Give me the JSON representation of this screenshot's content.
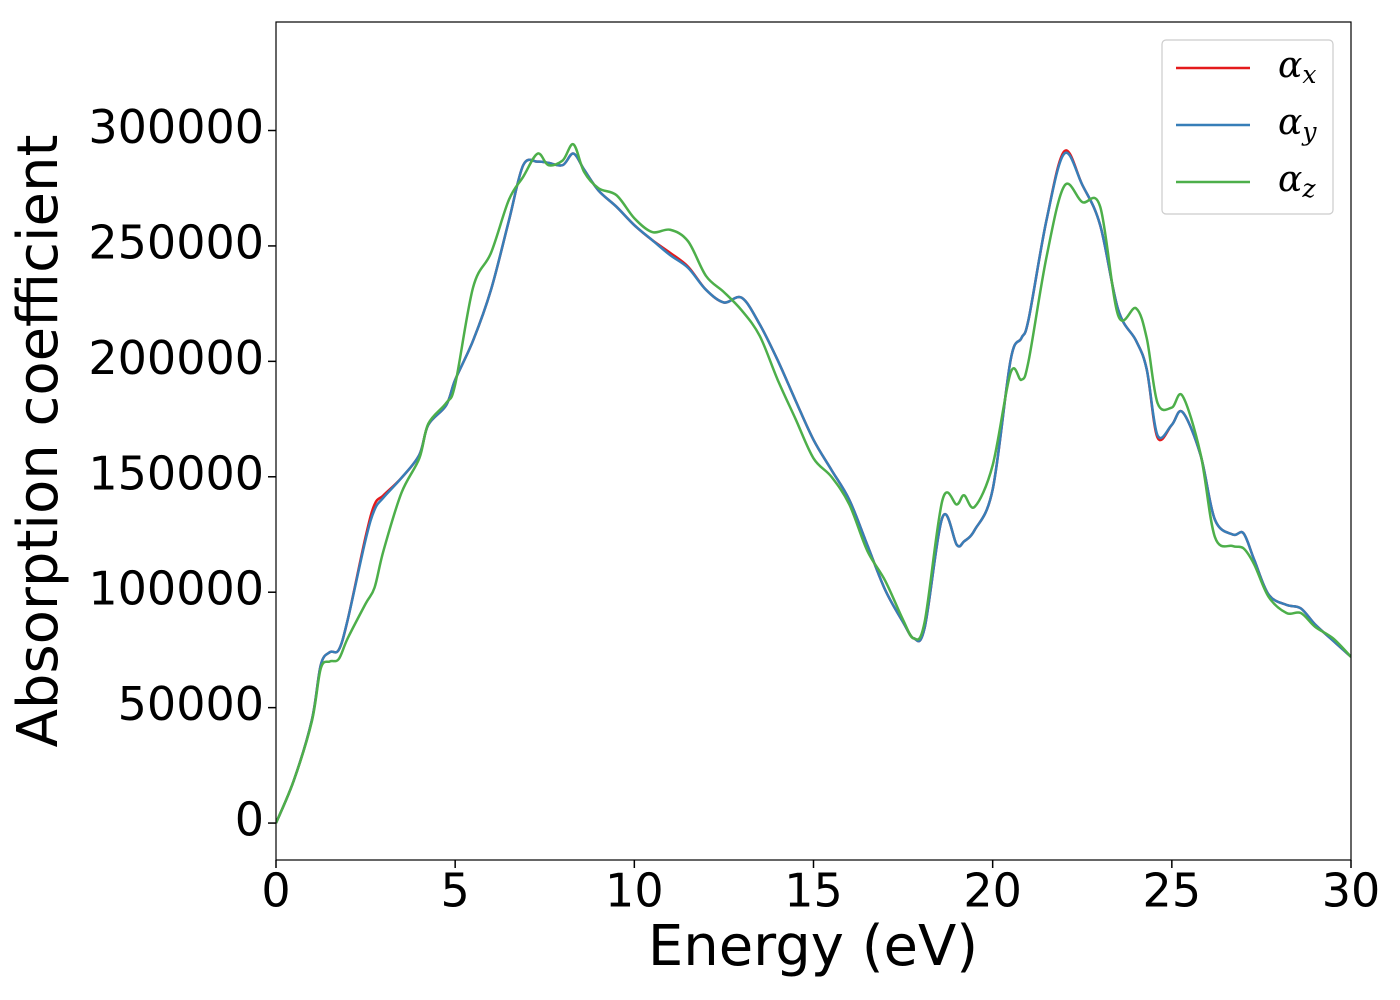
{
  "chart_data": {
    "type": "line",
    "xlabel": "Energy (eV)",
    "ylabel": "Absorption coefficient",
    "x": [
      0,
      0.5,
      1.0,
      1.25,
      1.5,
      1.75,
      2.0,
      2.5,
      2.75,
      3.0,
      3.5,
      4.0,
      4.25,
      4.75,
      5,
      5.5,
      6,
      6.5,
      6.9,
      7.3,
      7.6,
      8,
      8.3,
      8.6,
      9,
      9.5,
      10,
      10.5,
      11,
      11.5,
      12,
      12.5,
      13,
      13.5,
      14,
      14.5,
      15,
      15.5,
      16,
      16.5,
      17,
      17.5,
      17.8,
      18.1,
      18.6,
      19,
      19.2,
      19.5,
      20,
      20.5,
      20.8,
      21,
      21.5,
      22,
      22.5,
      23,
      23.5,
      24,
      24.3,
      24.6,
      25,
      25.3,
      25.8,
      26.2,
      26.7,
      27,
      27.3,
      27.7,
      28.2,
      28.6,
      29,
      29.5,
      30
    ],
    "series": [
      {
        "name": "αx",
        "color": "#e41a1c",
        "values": [
          0,
          18600,
          44600,
          68500,
          74000,
          75000,
          88000,
          124000,
          138000,
          142000,
          149500,
          159500,
          172500,
          181000,
          192000,
          209000,
          231000,
          261000,
          285000,
          286500,
          286000,
          285000,
          290000,
          283000,
          274000,
          267000,
          259000,
          252500,
          247000,
          241000,
          231000,
          225500,
          227500,
          216000,
          200500,
          183000,
          166000,
          153000,
          140000,
          120500,
          101000,
          87000,
          80000,
          84500,
          132500,
          120500,
          122000,
          127000,
          144500,
          200500,
          210000,
          218000,
          261000,
          291000,
          276500,
          259000,
          222500,
          209000,
          196500,
          167000,
          172500,
          178000,
          159500,
          131500,
          125000,
          125500,
          114000,
          99000,
          94500,
          93000,
          86000,
          79000,
          72000
        ]
      },
      {
        "name": "αy",
        "color": "#377eb8",
        "values": [
          0,
          18600,
          44600,
          68500,
          74000,
          75000,
          88000,
          122700,
          135700,
          141000,
          149500,
          159500,
          172500,
          181000,
          192000,
          209000,
          231000,
          261000,
          285000,
          286500,
          286000,
          285000,
          290000,
          283000,
          274000,
          267000,
          259000,
          252500,
          246000,
          240500,
          231000,
          225500,
          227500,
          216000,
          200500,
          183000,
          166000,
          153000,
          140000,
          120500,
          101000,
          87000,
          80000,
          84500,
          132500,
          120500,
          122000,
          127000,
          144500,
          200500,
          210000,
          218000,
          261000,
          290000,
          276500,
          259000,
          222500,
          209000,
          196500,
          168000,
          172500,
          178000,
          159500,
          131500,
          125000,
          125500,
          114000,
          99000,
          94500,
          93000,
          86000,
          79000,
          72000
        ]
      },
      {
        "name": "αz",
        "color": "#4daf4a",
        "values": [
          0,
          18600,
          44000,
          67000,
          70000,
          71000,
          80000,
          95000,
          102000,
          118000,
          143000,
          158000,
          173000,
          182000,
          190000,
          232000,
          247000,
          270000,
          280000,
          290000,
          285000,
          287000,
          294000,
          282000,
          275000,
          272000,
          262000,
          256000,
          257000,
          252000,
          237000,
          230000,
          222000,
          211000,
          192000,
          175000,
          158000,
          150000,
          138000,
          118000,
          105000,
          88000,
          80000,
          87000,
          140000,
          138000,
          142000,
          137000,
          155000,
          195000,
          192000,
          200000,
          245000,
          276000,
          269000,
          267000,
          220000,
          223000,
          210000,
          182000,
          180000,
          185000,
          160000,
          124000,
          120000,
          119000,
          112000,
          98000,
          91000,
          91000,
          85000,
          80000,
          72000
        ]
      }
    ],
    "xlim": [
      0,
      30
    ],
    "xticks": [
      0,
      5,
      10,
      15,
      20,
      25,
      30
    ],
    "ylim": [
      -16000,
      347000
    ],
    "yticks": [
      0,
      50000,
      100000,
      150000,
      200000,
      250000,
      300000
    ],
    "legend": "upper right"
  }
}
